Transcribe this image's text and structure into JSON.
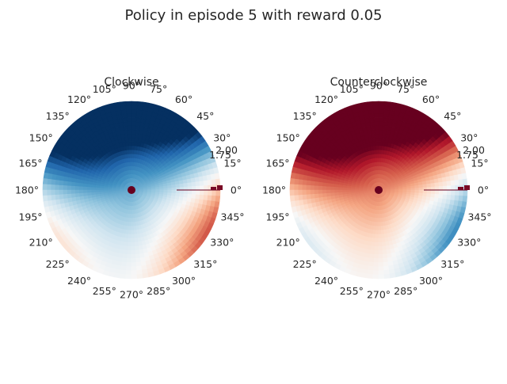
{
  "figure": {
    "title": "Policy in episode 5 with reward 0.05"
  },
  "chart_data": [
    {
      "type": "heatmap",
      "projection": "polar",
      "title": "Clockwise",
      "colormap": "RdBu",
      "angle_tick_labels": [
        "0°",
        "15°",
        "30°",
        "45°",
        "60°",
        "75°",
        "90°",
        "105°",
        "120°",
        "135°",
        "150°",
        "165°",
        "180°",
        "195°",
        "210°",
        "225°",
        "240°",
        "255°",
        "270°",
        "285°",
        "300°",
        "315°",
        "330°",
        "345°"
      ],
      "radial_tick_labels": [
        "2.00",
        "1.75"
      ],
      "radial_range": [
        0,
        2
      ],
      "center_marker": true,
      "field": {
        "a0": 0.25,
        "a1": 0.55,
        "a2": -0.25,
        "b1": -0.15,
        "b2": 0.05
      },
      "grid": false
    },
    {
      "type": "heatmap",
      "projection": "polar",
      "title": "Counterclockwise",
      "colormap": "RdBu",
      "angle_tick_labels": [
        "0°",
        "15°",
        "30°",
        "45°",
        "60°",
        "75°",
        "90°",
        "105°",
        "120°",
        "135°",
        "150°",
        "165°",
        "180°",
        "195°",
        "210°",
        "225°",
        "240°",
        "255°",
        "270°",
        "285°",
        "300°",
        "315°",
        "330°",
        "345°"
      ],
      "radial_tick_labels": [
        "2.00",
        "1.75"
      ],
      "radial_range": [
        0,
        2
      ],
      "center_marker": true,
      "field": {
        "a0": -0.25,
        "a1": -0.55,
        "a2": 0.25,
        "b1": 0.15,
        "b2": -0.05
      },
      "grid": false
    }
  ]
}
